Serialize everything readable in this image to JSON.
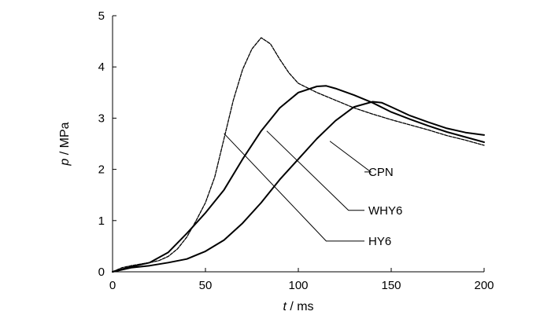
{
  "chart_data": {
    "type": "line",
    "xlabel": {
      "var": "t",
      "unit": " / ms"
    },
    "ylabel": {
      "var": "p",
      "unit": " / MPa"
    },
    "xlim": [
      0,
      200
    ],
    "ylim": [
      0,
      5
    ],
    "x_ticks": [
      0,
      50,
      100,
      150,
      200
    ],
    "y_ticks": [
      0,
      1,
      2,
      3,
      4,
      5
    ],
    "grid": false,
    "legend": "leader-line labels on right",
    "series": [
      {
        "name": "CPN",
        "style": "dashed-thin",
        "points": [
          [
            0,
            0
          ],
          [
            5,
            0.08
          ],
          [
            10,
            0.12
          ],
          [
            15,
            0.15
          ],
          [
            20,
            0.18
          ],
          [
            25,
            0.22
          ],
          [
            30,
            0.3
          ],
          [
            35,
            0.45
          ],
          [
            40,
            0.68
          ],
          [
            45,
            1.0
          ],
          [
            50,
            1.35
          ],
          [
            55,
            1.85
          ],
          [
            60,
            2.6
          ],
          [
            65,
            3.35
          ],
          [
            70,
            3.95
          ],
          [
            75,
            4.35
          ],
          [
            80,
            4.57
          ],
          [
            85,
            4.45
          ],
          [
            90,
            4.15
          ],
          [
            95,
            3.88
          ],
          [
            100,
            3.68
          ],
          [
            110,
            3.5
          ],
          [
            120,
            3.35
          ],
          [
            130,
            3.2
          ],
          [
            140,
            3.08
          ],
          [
            150,
            2.97
          ],
          [
            160,
            2.87
          ],
          [
            170,
            2.77
          ],
          [
            180,
            2.66
          ],
          [
            190,
            2.57
          ],
          [
            200,
            2.47
          ]
        ]
      },
      {
        "name": "WHY6",
        "style": "solid",
        "points": [
          [
            0,
            0
          ],
          [
            10,
            0.1
          ],
          [
            20,
            0.18
          ],
          [
            30,
            0.38
          ],
          [
            40,
            0.75
          ],
          [
            50,
            1.15
          ],
          [
            60,
            1.6
          ],
          [
            70,
            2.2
          ],
          [
            80,
            2.75
          ],
          [
            90,
            3.2
          ],
          [
            100,
            3.5
          ],
          [
            110,
            3.62
          ],
          [
            115,
            3.63
          ],
          [
            120,
            3.58
          ],
          [
            130,
            3.45
          ],
          [
            140,
            3.3
          ],
          [
            150,
            3.12
          ],
          [
            160,
            2.98
          ],
          [
            170,
            2.85
          ],
          [
            180,
            2.73
          ],
          [
            190,
            2.63
          ],
          [
            200,
            2.53
          ]
        ]
      },
      {
        "name": "HY6",
        "style": "solid",
        "points": [
          [
            0,
            0
          ],
          [
            10,
            0.08
          ],
          [
            20,
            0.12
          ],
          [
            30,
            0.18
          ],
          [
            40,
            0.25
          ],
          [
            50,
            0.4
          ],
          [
            60,
            0.62
          ],
          [
            70,
            0.95
          ],
          [
            80,
            1.35
          ],
          [
            90,
            1.8
          ],
          [
            100,
            2.2
          ],
          [
            110,
            2.6
          ],
          [
            120,
            2.95
          ],
          [
            130,
            3.22
          ],
          [
            140,
            3.32
          ],
          [
            145,
            3.3
          ],
          [
            150,
            3.22
          ],
          [
            160,
            3.05
          ],
          [
            170,
            2.92
          ],
          [
            180,
            2.8
          ],
          [
            190,
            2.72
          ],
          [
            200,
            2.67
          ]
        ]
      }
    ],
    "annotations": [
      {
        "label": "CPN",
        "from": [
          117,
          2.55
        ],
        "mid": [
          139,
          1.95
        ]
      },
      {
        "label": "WHY6",
        "from": [
          83,
          2.75
        ],
        "mid": [
          127,
          1.2
        ]
      },
      {
        "label": "HY6",
        "from": [
          60,
          2.7
        ],
        "mid": [
          115,
          0.6
        ]
      }
    ]
  }
}
